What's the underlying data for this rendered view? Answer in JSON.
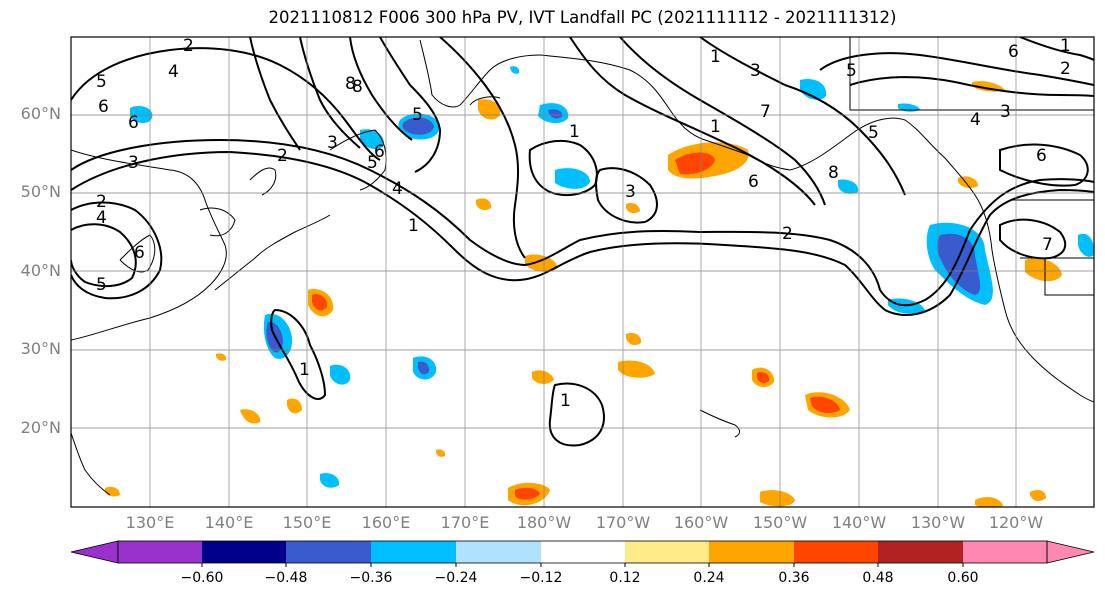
{
  "title": "2021110812 F006 300 hPa PV, IVT Landfall PC (2021111112 - 2021111312)",
  "lat_labels": [
    "60°N",
    "50°N",
    "40°N",
    "30°N",
    "20°N"
  ],
  "lon_labels": [
    "130°E",
    "140°E",
    "150°E",
    "160°E",
    "170°E",
    "180°W",
    "170°W",
    "160°W",
    "150°W",
    "140°W",
    "130°W",
    "120°W"
  ],
  "contour_labels": [
    "2",
    "4",
    "5",
    "6",
    "6",
    "3",
    "2",
    "4",
    "5",
    "3",
    "5",
    "2",
    "1",
    "8",
    "1",
    "1",
    "3",
    "3",
    "1",
    "5",
    "6",
    "8",
    "2",
    "7",
    "7",
    "6",
    "4",
    "3",
    "5",
    "6",
    "1",
    "2",
    "6",
    "4",
    "6",
    "5",
    "8",
    "1",
    "1"
  ],
  "colorbar": {
    "ticks": [
      "−0.60",
      "−0.48",
      "−0.36",
      "−0.24",
      "−0.12",
      "0.12",
      "0.24",
      "0.36",
      "0.48",
      "0.60"
    ],
    "colors": [
      "#9932CC",
      "#00008B",
      "#3A5BCD",
      "#00BFFF",
      "#B0E2FF",
      "#FFFFFF",
      "#FFEB8A",
      "#FFA500",
      "#FF4500",
      "#B22222",
      "#FF88B2"
    ]
  }
}
